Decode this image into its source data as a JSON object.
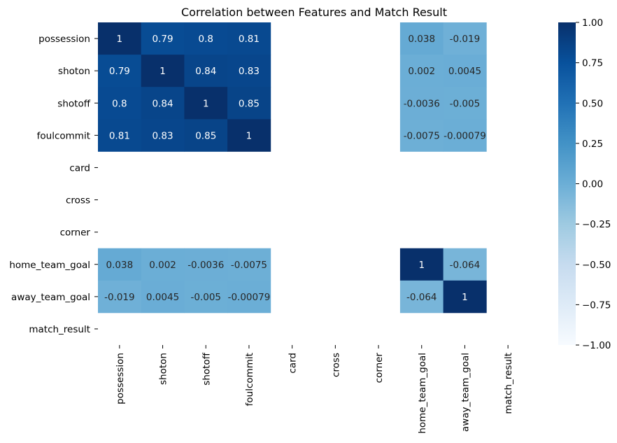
{
  "chart_data": {
    "type": "heatmap",
    "title": "Correlation between Features and Match Result",
    "rows": [
      "possession",
      "shoton",
      "shotoff",
      "foulcommit",
      "card",
      "cross",
      "corner",
      "home_team_goal",
      "away_team_goal",
      "match_result"
    ],
    "columns": [
      "possession",
      "shoton",
      "shotoff",
      "foulcommit",
      "card",
      "cross",
      "corner",
      "home_team_goal",
      "away_team_goal",
      "match_result"
    ],
    "values": [
      [
        1,
        0.79,
        0.8,
        0.81,
        null,
        null,
        null,
        0.038,
        -0.019,
        null
      ],
      [
        0.79,
        1,
        0.84,
        0.83,
        null,
        null,
        null,
        0.002,
        0.0045,
        null
      ],
      [
        0.8,
        0.84,
        1,
        0.85,
        null,
        null,
        null,
        -0.0036,
        -0.005,
        null
      ],
      [
        0.81,
        0.83,
        0.85,
        1,
        null,
        null,
        null,
        -0.0075,
        -0.00079,
        null
      ],
      [
        null,
        null,
        null,
        null,
        null,
        null,
        null,
        null,
        null,
        null
      ],
      [
        null,
        null,
        null,
        null,
        null,
        null,
        null,
        null,
        null,
        null
      ],
      [
        null,
        null,
        null,
        null,
        null,
        null,
        null,
        null,
        null,
        null
      ],
      [
        0.038,
        0.002,
        -0.0036,
        -0.0075,
        null,
        null,
        null,
        1,
        -0.064,
        null
      ],
      [
        -0.019,
        0.0045,
        -0.005,
        -0.00079,
        null,
        null,
        null,
        -0.064,
        1,
        null
      ],
      [
        null,
        null,
        null,
        null,
        null,
        null,
        null,
        null,
        null,
        null
      ]
    ],
    "annotations": [
      [
        "1",
        "0.79",
        "0.8",
        "0.81",
        "",
        "",
        "",
        "0.038",
        "-0.019",
        ""
      ],
      [
        "0.79",
        "1",
        "0.84",
        "0.83",
        "",
        "",
        "",
        "0.002",
        "0.0045",
        ""
      ],
      [
        "0.8",
        "0.84",
        "1",
        "0.85",
        "",
        "",
        "",
        "-0.0036",
        "-0.005",
        ""
      ],
      [
        "0.81",
        "0.83",
        "0.85",
        "1",
        "",
        "",
        "",
        "-0.0075",
        "-0.00079",
        ""
      ],
      [
        "",
        "",
        "",
        "",
        "",
        "",
        "",
        "",
        "",
        ""
      ],
      [
        "",
        "",
        "",
        "",
        "",
        "",
        "",
        "",
        "",
        ""
      ],
      [
        "",
        "",
        "",
        "",
        "",
        "",
        "",
        "",
        "",
        ""
      ],
      [
        "0.038",
        "0.002",
        "-0.0036",
        "-0.0075",
        "",
        "",
        "",
        "1",
        "-0.064",
        ""
      ],
      [
        "-0.019",
        "0.0045",
        "-0.005",
        "-0.00079",
        "",
        "",
        "",
        "-0.064",
        "1",
        ""
      ],
      [
        "",
        "",
        "",
        "",
        "",
        "",
        "",
        "",
        "",
        ""
      ]
    ],
    "colormap": "Blues",
    "colorbar": {
      "range": [
        -1,
        1
      ],
      "ticks": [
        1,
        0.75,
        0.5,
        0.25,
        0,
        -0.25,
        -0.5,
        -0.75,
        -1
      ],
      "tick_labels": [
        "1.00",
        "0.75",
        "0.50",
        "0.25",
        "0.00",
        "−0.25",
        "−0.50",
        "−0.75",
        "−1.00"
      ]
    },
    "legend": "colorbar right",
    "grid": false
  }
}
